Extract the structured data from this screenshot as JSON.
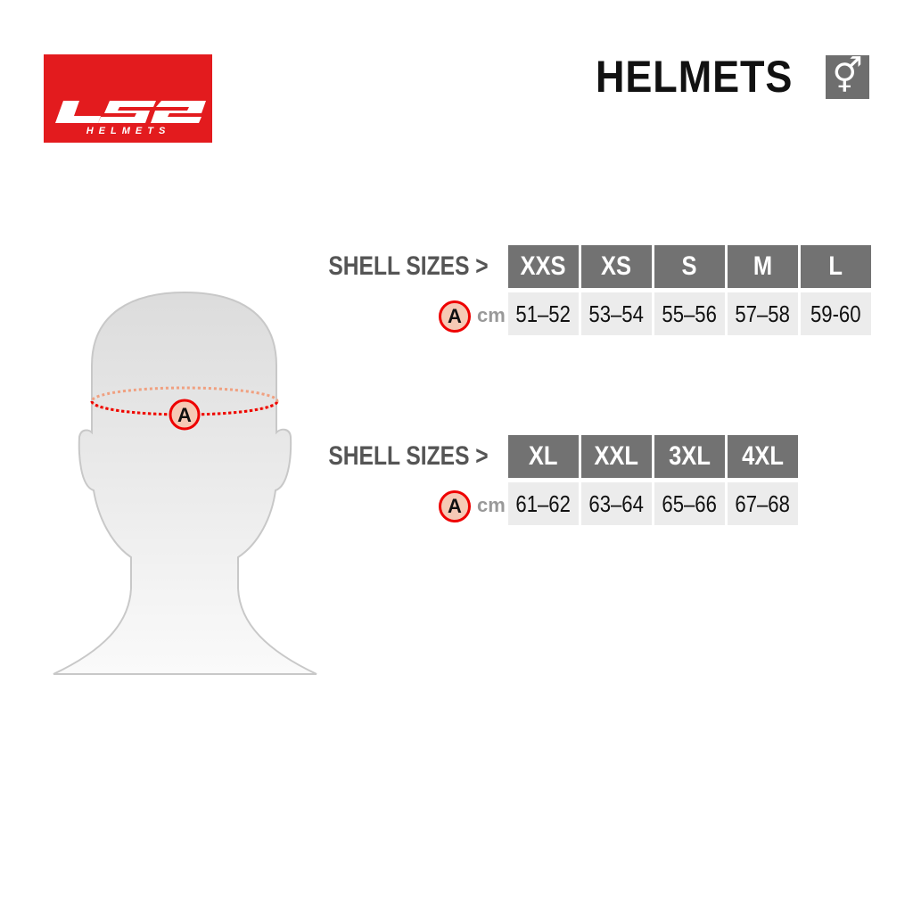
{
  "brand": {
    "logo_text": "LS2",
    "logo_subtext": "HELMETS",
    "color": "#e31b1e"
  },
  "header": {
    "title": "HELMETS",
    "gender_icon": "unisex-gender-icon",
    "gender_symbol": "⚥"
  },
  "diagram": {
    "measure_marker": "A"
  },
  "tables": [
    {
      "label": "SHELL SIZES >",
      "marker": "A",
      "unit": "cm",
      "sizes": [
        "XXS",
        "XS",
        "S",
        "M",
        "L"
      ],
      "values": [
        "51–52",
        "53–54",
        "55–56",
        "57–58",
        "59-60"
      ]
    },
    {
      "label": "SHELL SIZES >",
      "marker": "A",
      "unit": "cm",
      "sizes": [
        "XL",
        "XXL",
        "3XL",
        "4XL"
      ],
      "values": [
        "61–62",
        "63–64",
        "65–66",
        "67–68"
      ]
    }
  ],
  "colors": {
    "header_cell": "#727272",
    "value_cell": "#ececec",
    "marker_ring": "#e00000"
  }
}
